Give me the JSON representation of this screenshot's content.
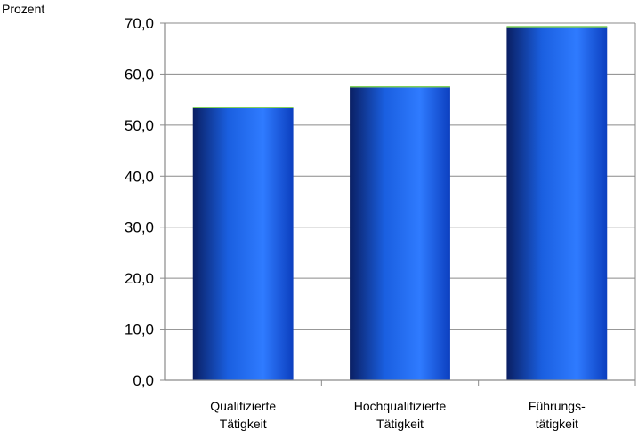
{
  "chart_data": {
    "type": "bar",
    "ylabel": "Prozent",
    "categories": [
      [
        "Qualifizierte",
        "Tätigkeit"
      ],
      [
        "Hochqualifizierte",
        "Tätigkeit"
      ],
      [
        "Führungs-",
        "tätigkeit"
      ]
    ],
    "values": [
      53.5,
      57.5,
      69.3
    ],
    "ylim": [
      0,
      70
    ],
    "yticks": [
      0,
      10,
      20,
      30,
      40,
      50,
      60,
      70
    ],
    "ytick_labels": [
      "0,0",
      "10,0",
      "20,0",
      "30,0",
      "40,0",
      "50,0",
      "60,0",
      "70,0"
    ],
    "grid": true,
    "legend": "none",
    "colors": {
      "bar_dark": "#0a1f63",
      "bar_light": "#3b8cff",
      "bar_mid": "#1a64e6",
      "bar_top": "#7fd05a",
      "grid": "#8a8a8a",
      "axis": "#8a8a8a"
    }
  }
}
